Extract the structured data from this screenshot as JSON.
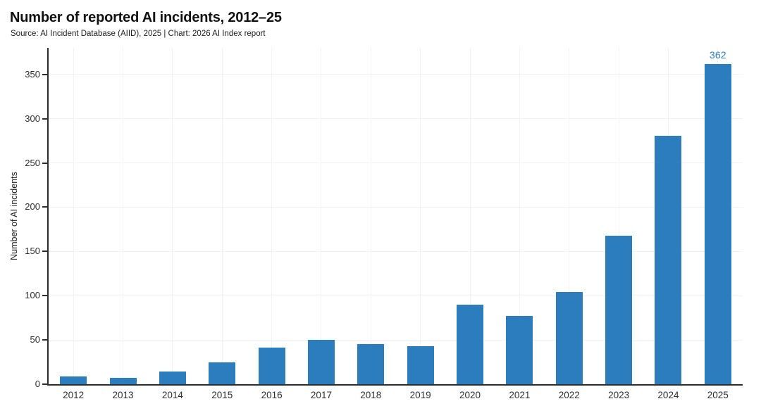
{
  "header": {
    "title": "Number of reported AI incidents, 2012–25",
    "subtitle": "Source: AI Incident Database (AIID), 2025 | Chart: 2026 AI Index report"
  },
  "chart_data": {
    "type": "bar",
    "title": "Number of reported AI incidents, 2012–25",
    "subtitle": "Source: AI Incident Database (AIID), 2025 | Chart: 2026 AI Index report",
    "categories": [
      "2012",
      "2013",
      "2014",
      "2015",
      "2016",
      "2017",
      "2018",
      "2019",
      "2020",
      "2021",
      "2022",
      "2023",
      "2024",
      "2025"
    ],
    "values": [
      9,
      7,
      14,
      25,
      41,
      50,
      45,
      43,
      90,
      77,
      104,
      168,
      281,
      362
    ],
    "xlabel": "",
    "ylabel": "Number of AI incidents",
    "ylim": [
      0,
      380
    ],
    "y_ticks": [
      0,
      50,
      100,
      150,
      200,
      250,
      300,
      350
    ],
    "grid": "both",
    "legend": "none",
    "data_labels": [
      {
        "category": "2025",
        "text": "362"
      }
    ],
    "colors": {
      "bar": "#2b7dbe",
      "data_label": "#2e7dbe",
      "axis": "#2e2e2e",
      "grid": "#f4f1f1",
      "title": "#111111",
      "subtitle": "#1c1c1c",
      "tick_text": "#2e2e2e"
    }
  }
}
